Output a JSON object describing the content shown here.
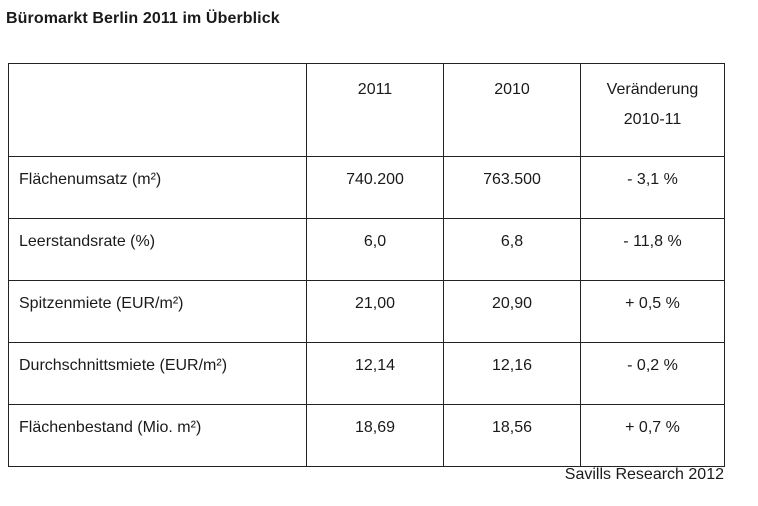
{
  "title": "Büromarkt Berlin 2011 im Überblick",
  "table": {
    "headers": {
      "label": "",
      "year_2011": "2011",
      "year_2010": "2010",
      "change_line1": "Veränderung",
      "change_line2": "2010-11"
    },
    "rows": [
      {
        "label": "Flächenumsatz (m²)",
        "v2011": "740.200",
        "v2010": "763.500",
        "change": "- 3,1 %"
      },
      {
        "label": "Leerstandsrate (%)",
        "v2011": "6,0",
        "v2010": "6,8",
        "change": "- 11,8 %"
      },
      {
        "label": "Spitzenmiete (EUR/m²)",
        "v2011": "21,00",
        "v2010": "20,90",
        "change": "+ 0,5 %"
      },
      {
        "label": "Durchschnittsmiete (EUR/m²)",
        "v2011": "12,14",
        "v2010": "12,16",
        "change": "- 0,2 %"
      },
      {
        "label": "Flächenbestand (Mio. m²)",
        "v2011": "18,69",
        "v2010": "18,56",
        "change": "+ 0,7 %"
      }
    ]
  },
  "source": "Savills Research 2012"
}
